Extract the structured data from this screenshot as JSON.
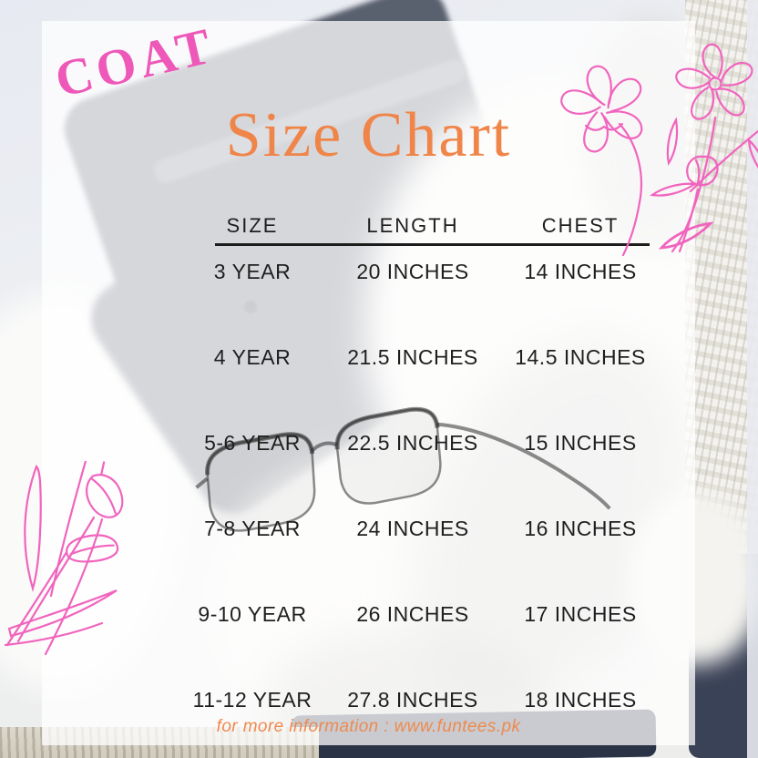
{
  "poster": {
    "category_label": "COAT",
    "title": "Size Chart",
    "footer_text": "for more information : www.funtees.pk"
  },
  "chart_data": {
    "type": "table",
    "title": "COAT Size Chart",
    "columns": [
      "SIZE",
      "LENGTH",
      "CHEST"
    ],
    "rows": [
      [
        "3 YEAR",
        "20 INCHES",
        "14 INCHES"
      ],
      [
        "4 YEAR",
        "21.5 INCHES",
        "14.5 INCHES"
      ],
      [
        "5-6 YEAR",
        "22.5 INCHES",
        "15 INCHES"
      ],
      [
        "7-8 YEAR",
        "24 INCHES",
        "16 INCHES"
      ],
      [
        "9-10 YEAR",
        "26 INCHES",
        "17 INCHES"
      ],
      [
        "11-12 YEAR",
        "27.8 INCHES",
        "18 INCHES"
      ]
    ]
  },
  "decorations": {
    "top_right_flowers": "pink line-art flowers",
    "bottom_left_tulips": "pink line-art tulips",
    "center_glasses": "eyeglasses seen through overlay",
    "background_photo": "flat lay of white knit sweater, folded jeans and glasses"
  },
  "colors": {
    "category_pink": "#EE58B8",
    "title_orange": "#F0854A",
    "footer_orange": "#EE8A4E",
    "table_text": "#1F1F1F",
    "divider_black": "#1C1C1C",
    "flower_pink": "#F164BE",
    "navy_fabric": "#2B3347"
  }
}
